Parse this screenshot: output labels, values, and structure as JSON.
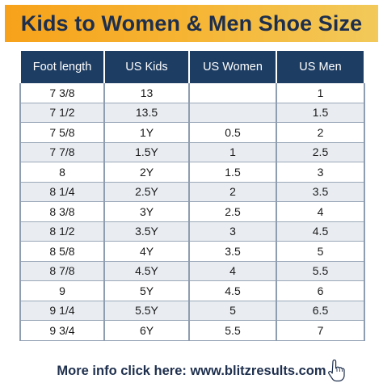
{
  "title": "Kids to Women & Men Shoe Size",
  "table": {
    "headers": [
      "Foot length",
      "US Kids",
      "US Women",
      "US Men"
    ],
    "rows": [
      [
        "7 3/8",
        "13",
        "",
        "1"
      ],
      [
        "7 1/2",
        "13.5",
        "",
        "1.5"
      ],
      [
        "7 5/8",
        "1Y",
        "0.5",
        "2"
      ],
      [
        "7 7/8",
        "1.5Y",
        "1",
        "2.5"
      ],
      [
        "8",
        "2Y",
        "1.5",
        "3"
      ],
      [
        "8 1/4",
        "2.5Y",
        "2",
        "3.5"
      ],
      [
        "8 3/8",
        "3Y",
        "2.5",
        "4"
      ],
      [
        "8 1/2",
        "3.5Y",
        "3",
        "4.5"
      ],
      [
        "8 5/8",
        "4Y",
        "3.5",
        "5"
      ],
      [
        "8 7/8",
        "4.5Y",
        "4",
        "5.5"
      ],
      [
        "9",
        "5Y",
        "4.5",
        "6"
      ],
      [
        "9 1/4",
        "5.5Y",
        "5",
        "6.5"
      ],
      [
        "9 3/4",
        "6Y",
        "5.5",
        "7"
      ]
    ]
  },
  "footer": {
    "text": "More info click here: www.blitzresults.com",
    "icon": "hand-pointer-icon"
  },
  "colors": {
    "banner": "#f6b534",
    "header_bg": "#1e3d63",
    "title_text": "#1e2f4d",
    "stripe": "#e9edf2"
  }
}
